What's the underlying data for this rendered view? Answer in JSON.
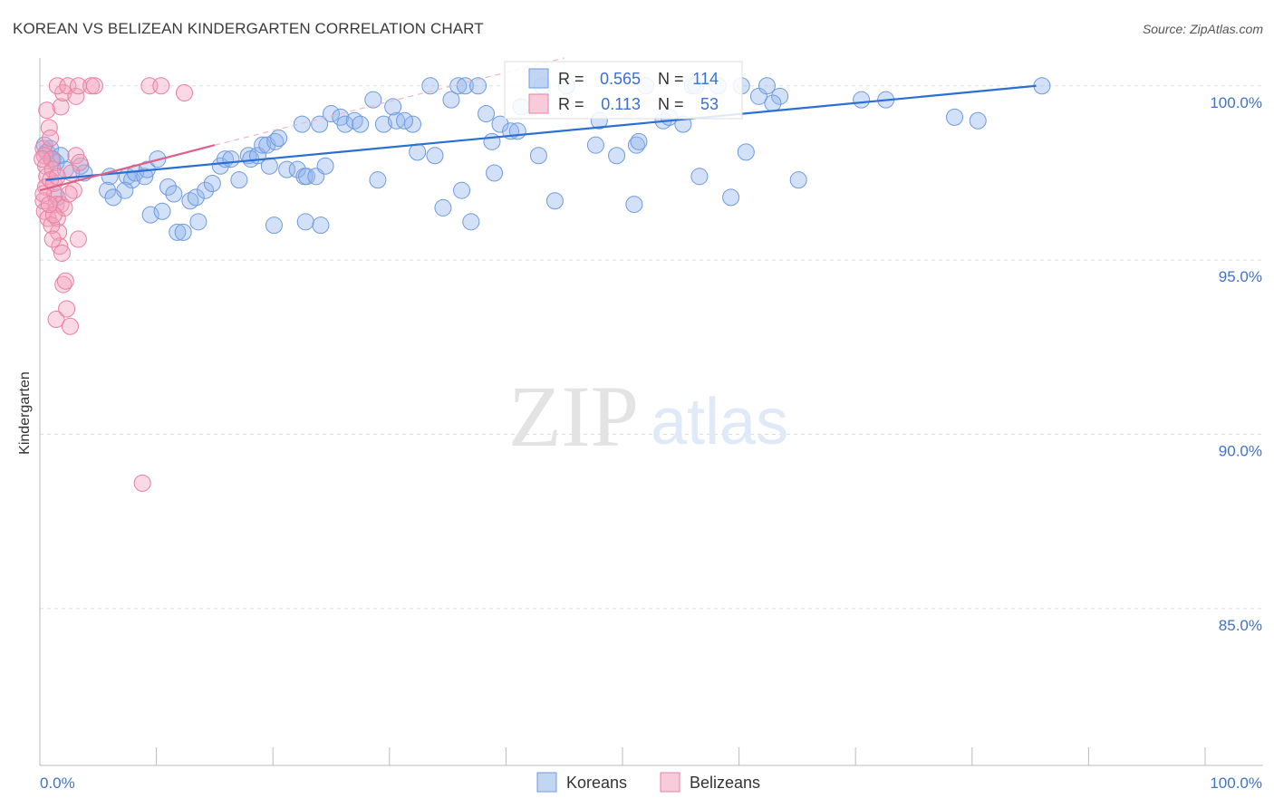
{
  "title": "KOREAN VS BELIZEAN KINDERGARTEN CORRELATION CHART",
  "source": "Source: ZipAtlas.com",
  "watermark": {
    "zip": "ZIP",
    "atlas": "atlas"
  },
  "chart_data": {
    "type": "scatter",
    "title": "KOREAN VS BELIZEAN KINDERGARTEN CORRELATION CHART",
    "xlabel": "",
    "ylabel": "Kindergarten",
    "xlim": [
      0,
      100
    ],
    "ylim": [
      80.5,
      100.8
    ],
    "y_ticks": [
      {
        "value": 100,
        "label": "100.0%"
      },
      {
        "value": 95,
        "label": "95.0%"
      },
      {
        "value": 90,
        "label": "90.0%"
      },
      {
        "value": 85,
        "label": "85.0%"
      }
    ],
    "x_ticks": [
      {
        "value": 0,
        "label": "0.0%"
      },
      {
        "value": 100,
        "label": "100.0%"
      }
    ],
    "legend_position": "top-center",
    "stats_legend": [
      {
        "r_label": "R =",
        "r_value": "0.565",
        "n_label": "N =",
        "n_value": "114",
        "color": "#8fb4ea"
      },
      {
        "r_label": "R =",
        "r_value": "0.113",
        "n_label": "N =",
        "n_value": "53",
        "color": "#f2a1bb"
      }
    ],
    "series": [
      {
        "name": "Koreans",
        "color": "#8fb4ea",
        "stroke": "#6f9ae0",
        "trend": {
          "x1": 0.5,
          "y1": 97.3,
          "x2": 85.5,
          "y2": 100.0,
          "color": "#2a6fd4"
        },
        "points": [
          [
            0.4,
            98.3
          ],
          [
            0.6,
            98.1
          ],
          [
            0.9,
            98.2
          ],
          [
            1.1,
            97.9
          ],
          [
            1.4,
            97.8
          ],
          [
            1.8,
            98.0
          ],
          [
            2.2,
            97.6
          ],
          [
            3.5,
            97.7
          ],
          [
            3.8,
            97.5
          ],
          [
            6.0,
            97.4
          ],
          [
            5.8,
            97.0
          ],
          [
            7.5,
            97.4
          ],
          [
            7.9,
            97.3
          ],
          [
            8.2,
            97.5
          ],
          [
            9.0,
            97.4
          ],
          [
            9.2,
            97.6
          ],
          [
            10.1,
            97.9
          ],
          [
            1.5,
            96.8
          ],
          [
            6.3,
            96.8
          ],
          [
            7.3,
            97.0
          ],
          [
            11.0,
            97.1
          ],
          [
            11.5,
            96.9
          ],
          [
            12.9,
            96.7
          ],
          [
            13.4,
            96.8
          ],
          [
            14.2,
            97.0
          ],
          [
            14.8,
            97.2
          ],
          [
            15.5,
            97.7
          ],
          [
            15.9,
            97.9
          ],
          [
            16.4,
            97.9
          ],
          [
            17.1,
            97.3
          ],
          [
            17.9,
            98.0
          ],
          [
            18.1,
            97.9
          ],
          [
            18.7,
            98.0
          ],
          [
            19.1,
            98.3
          ],
          [
            19.5,
            98.3
          ],
          [
            20.2,
            98.4
          ],
          [
            20.5,
            98.5
          ],
          [
            19.7,
            97.7
          ],
          [
            21.2,
            97.6
          ],
          [
            22.1,
            97.6
          ],
          [
            22.7,
            97.4
          ],
          [
            22.9,
            97.4
          ],
          [
            23.7,
            97.4
          ],
          [
            24.5,
            97.7
          ],
          [
            9.5,
            96.3
          ],
          [
            10.5,
            96.4
          ],
          [
            11.8,
            95.8
          ],
          [
            12.3,
            95.8
          ],
          [
            13.6,
            96.1
          ],
          [
            20.1,
            96.0
          ],
          [
            22.8,
            96.1
          ],
          [
            24.1,
            96.0
          ],
          [
            22.5,
            98.9
          ],
          [
            24.0,
            98.9
          ],
          [
            25.0,
            99.2
          ],
          [
            25.8,
            99.1
          ],
          [
            26.2,
            98.9
          ],
          [
            27.0,
            99.0
          ],
          [
            27.5,
            98.9
          ],
          [
            28.6,
            99.6
          ],
          [
            29.0,
            97.3
          ],
          [
            29.5,
            98.9
          ],
          [
            30.6,
            99.0
          ],
          [
            30.3,
            99.4
          ],
          [
            32.0,
            98.9
          ],
          [
            31.3,
            99.0
          ],
          [
            32.4,
            98.1
          ],
          [
            33.5,
            100.0
          ],
          [
            33.9,
            98.0
          ],
          [
            34.6,
            96.5
          ],
          [
            35.3,
            99.6
          ],
          [
            35.9,
            100.0
          ],
          [
            36.2,
            97.0
          ],
          [
            36.5,
            100.0
          ],
          [
            37.0,
            96.1
          ],
          [
            37.6,
            100.0
          ],
          [
            38.3,
            99.2
          ],
          [
            38.8,
            98.4
          ],
          [
            39.0,
            97.5
          ],
          [
            39.5,
            98.9
          ],
          [
            40.4,
            98.7
          ],
          [
            41.0,
            98.7
          ],
          [
            41.3,
            99.4
          ],
          [
            42.8,
            98.0
          ],
          [
            43.1,
            100.0
          ],
          [
            44.2,
            96.7
          ],
          [
            45.2,
            100.0
          ],
          [
            47.7,
            98.3
          ],
          [
            48.0,
            99.0
          ],
          [
            49.5,
            98.0
          ],
          [
            51.0,
            96.6
          ],
          [
            51.2,
            98.3
          ],
          [
            51.4,
            98.4
          ],
          [
            52.0,
            100.0
          ],
          [
            53.5,
            99.0
          ],
          [
            54.0,
            99.1
          ],
          [
            55.2,
            98.9
          ],
          [
            56.0,
            100.0
          ],
          [
            56.3,
            100.0
          ],
          [
            56.6,
            97.4
          ],
          [
            58.2,
            100.0
          ],
          [
            59.3,
            96.8
          ],
          [
            60.2,
            100.0
          ],
          [
            60.6,
            98.1
          ],
          [
            61.7,
            99.7
          ],
          [
            62.4,
            100.0
          ],
          [
            63.5,
            99.7
          ],
          [
            62.9,
            99.5
          ],
          [
            65.1,
            97.3
          ],
          [
            70.5,
            99.6
          ],
          [
            72.6,
            99.6
          ],
          [
            78.5,
            99.1
          ],
          [
            80.5,
            99.0
          ],
          [
            86.0,
            100.0
          ]
        ]
      },
      {
        "name": "Belizeans",
        "color": "#f2a1bb",
        "stroke": "#e8809f",
        "trend": {
          "x1": 0.0,
          "y1": 97.0,
          "x2": 15.0,
          "y2": 98.3,
          "color": "#e0608a"
        },
        "trend_ext": {
          "x1": 15.0,
          "y1": 98.3,
          "x2": 45.0,
          "y2": 100.8,
          "color": "#efb6c8"
        },
        "points": [
          [
            0.3,
            98.2
          ],
          [
            0.4,
            98.0
          ],
          [
            0.5,
            97.7
          ],
          [
            0.6,
            97.4
          ],
          [
            0.5,
            97.1
          ],
          [
            0.3,
            96.7
          ],
          [
            0.4,
            96.4
          ],
          [
            0.7,
            96.2
          ],
          [
            0.8,
            98.8
          ],
          [
            0.9,
            98.5
          ],
          [
            1.0,
            97.9
          ],
          [
            1.1,
            97.6
          ],
          [
            1.2,
            97.2
          ],
          [
            1.3,
            96.9
          ],
          [
            1.4,
            96.6
          ],
          [
            1.5,
            96.2
          ],
          [
            1.6,
            95.8
          ],
          [
            1.7,
            95.4
          ],
          [
            1.9,
            95.2
          ],
          [
            2.0,
            94.3
          ],
          [
            2.2,
            94.4
          ],
          [
            2.3,
            93.6
          ],
          [
            2.6,
            93.1
          ],
          [
            1.4,
            93.3
          ],
          [
            1.0,
            96.0
          ],
          [
            0.6,
            99.3
          ],
          [
            1.8,
            99.4
          ],
          [
            2.0,
            99.8
          ],
          [
            1.5,
            100.0
          ],
          [
            2.4,
            100.0
          ],
          [
            3.1,
            99.7
          ],
          [
            3.3,
            100.0
          ],
          [
            4.4,
            100.0
          ],
          [
            4.7,
            100.0
          ],
          [
            9.4,
            100.0
          ],
          [
            10.4,
            100.0
          ],
          [
            12.4,
            99.8
          ],
          [
            3.1,
            98.0
          ],
          [
            3.4,
            97.8
          ],
          [
            2.7,
            97.5
          ],
          [
            2.9,
            97.0
          ],
          [
            1.8,
            96.6
          ],
          [
            2.1,
            96.5
          ],
          [
            1.2,
            96.3
          ],
          [
            0.9,
            97.3
          ],
          [
            0.2,
            97.9
          ],
          [
            0.3,
            96.9
          ],
          [
            0.8,
            96.6
          ],
          [
            2.5,
            96.9
          ],
          [
            3.3,
            95.6
          ],
          [
            1.1,
            95.6
          ],
          [
            8.8,
            88.6
          ],
          [
            1.5,
            97.4
          ]
        ]
      }
    ]
  }
}
